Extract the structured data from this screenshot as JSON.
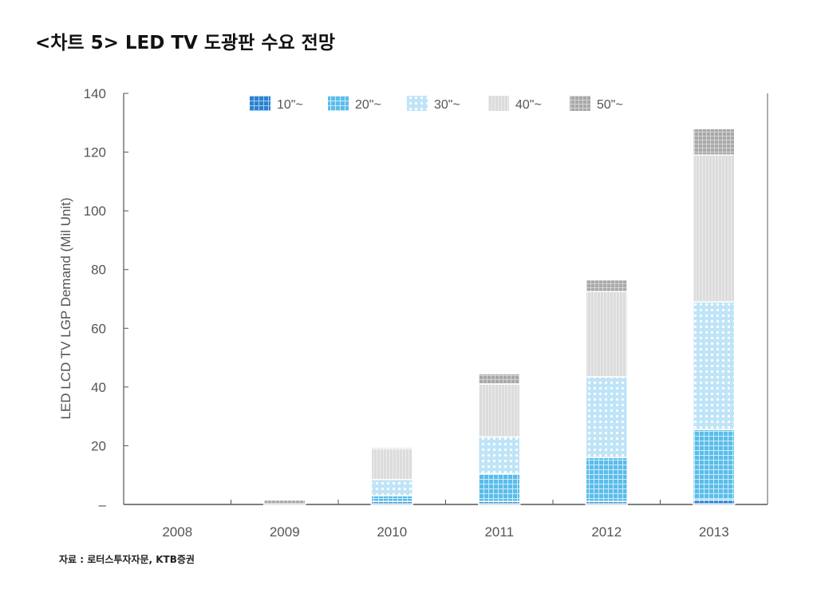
{
  "title": "<차트 5> LED TV 도광판 수요 전망",
  "source": "자료 : 로터스투자자문,  KTB증권",
  "chart_data": {
    "type": "bar",
    "stacked": true,
    "categories": [
      "2008",
      "2009",
      "2010",
      "2011",
      "2012",
      "2013"
    ],
    "ylabel": "LED LCD TV LGP Demand (Mil Unit)",
    "xlabel": "",
    "ylim": [
      0,
      140
    ],
    "yticks": [
      "–",
      "20",
      "40",
      "60",
      "80",
      "100",
      "120",
      "140"
    ],
    "ytick_values": [
      0,
      20,
      40,
      60,
      80,
      100,
      120,
      140
    ],
    "legend_position": "top",
    "series": [
      {
        "name": "10\"~",
        "color": "#2f7fcf",
        "pattern": "grid-dark",
        "values": [
          0,
          0,
          1,
          1,
          1,
          1.5
        ]
      },
      {
        "name": "20\"~",
        "color": "#5bbcea",
        "pattern": "grid",
        "values": [
          0,
          0,
          2,
          9.5,
          15,
          24
        ]
      },
      {
        "name": "30\"~",
        "color": "#bfe4f7",
        "pattern": "dots",
        "values": [
          0,
          0,
          5.5,
          12.5,
          27.5,
          43.5
        ]
      },
      {
        "name": "40\"~",
        "color": "#dcdcdc",
        "pattern": "stripes",
        "values": [
          0,
          0,
          10.5,
          18,
          29,
          50
        ]
      },
      {
        "name": "50\"~",
        "color": "#a8a8a8",
        "pattern": "grid-gray",
        "values": [
          0,
          1.5,
          0.5,
          3.5,
          4,
          9
        ]
      }
    ]
  }
}
